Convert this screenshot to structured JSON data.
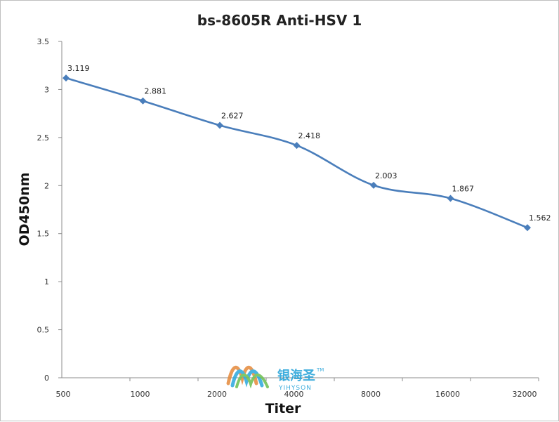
{
  "chart_data": {
    "type": "line",
    "title": "bs-8605R Anti-HSV 1",
    "xlabel": "Titer",
    "ylabel": "OD450nm",
    "categories": [
      "500",
      "1000",
      "2000",
      "4000",
      "8000",
      "16000",
      "32000"
    ],
    "values": [
      3.119,
      2.881,
      2.627,
      2.418,
      2.003,
      1.867,
      1.562
    ],
    "data_labels": [
      "3.119",
      "2.881",
      "2.627",
      "2.418",
      "2.003",
      "1.867",
      "1.562"
    ],
    "ylim": [
      0,
      3.5
    ],
    "yticks": [
      0,
      0.5,
      1,
      1.5,
      2,
      2.5,
      3,
      3.5
    ],
    "ytick_labels": [
      "0",
      "0.5",
      "1",
      "1.5",
      "2",
      "2.5",
      "3",
      "3.5"
    ],
    "grid": false,
    "legend": "none",
    "line_color": "#4a7ebb",
    "marker": "diamond"
  },
  "watermark": {
    "text_cn": "银海圣",
    "text_en": "YIHYSON",
    "tm": "TM",
    "color": "#1fa0d8"
  }
}
